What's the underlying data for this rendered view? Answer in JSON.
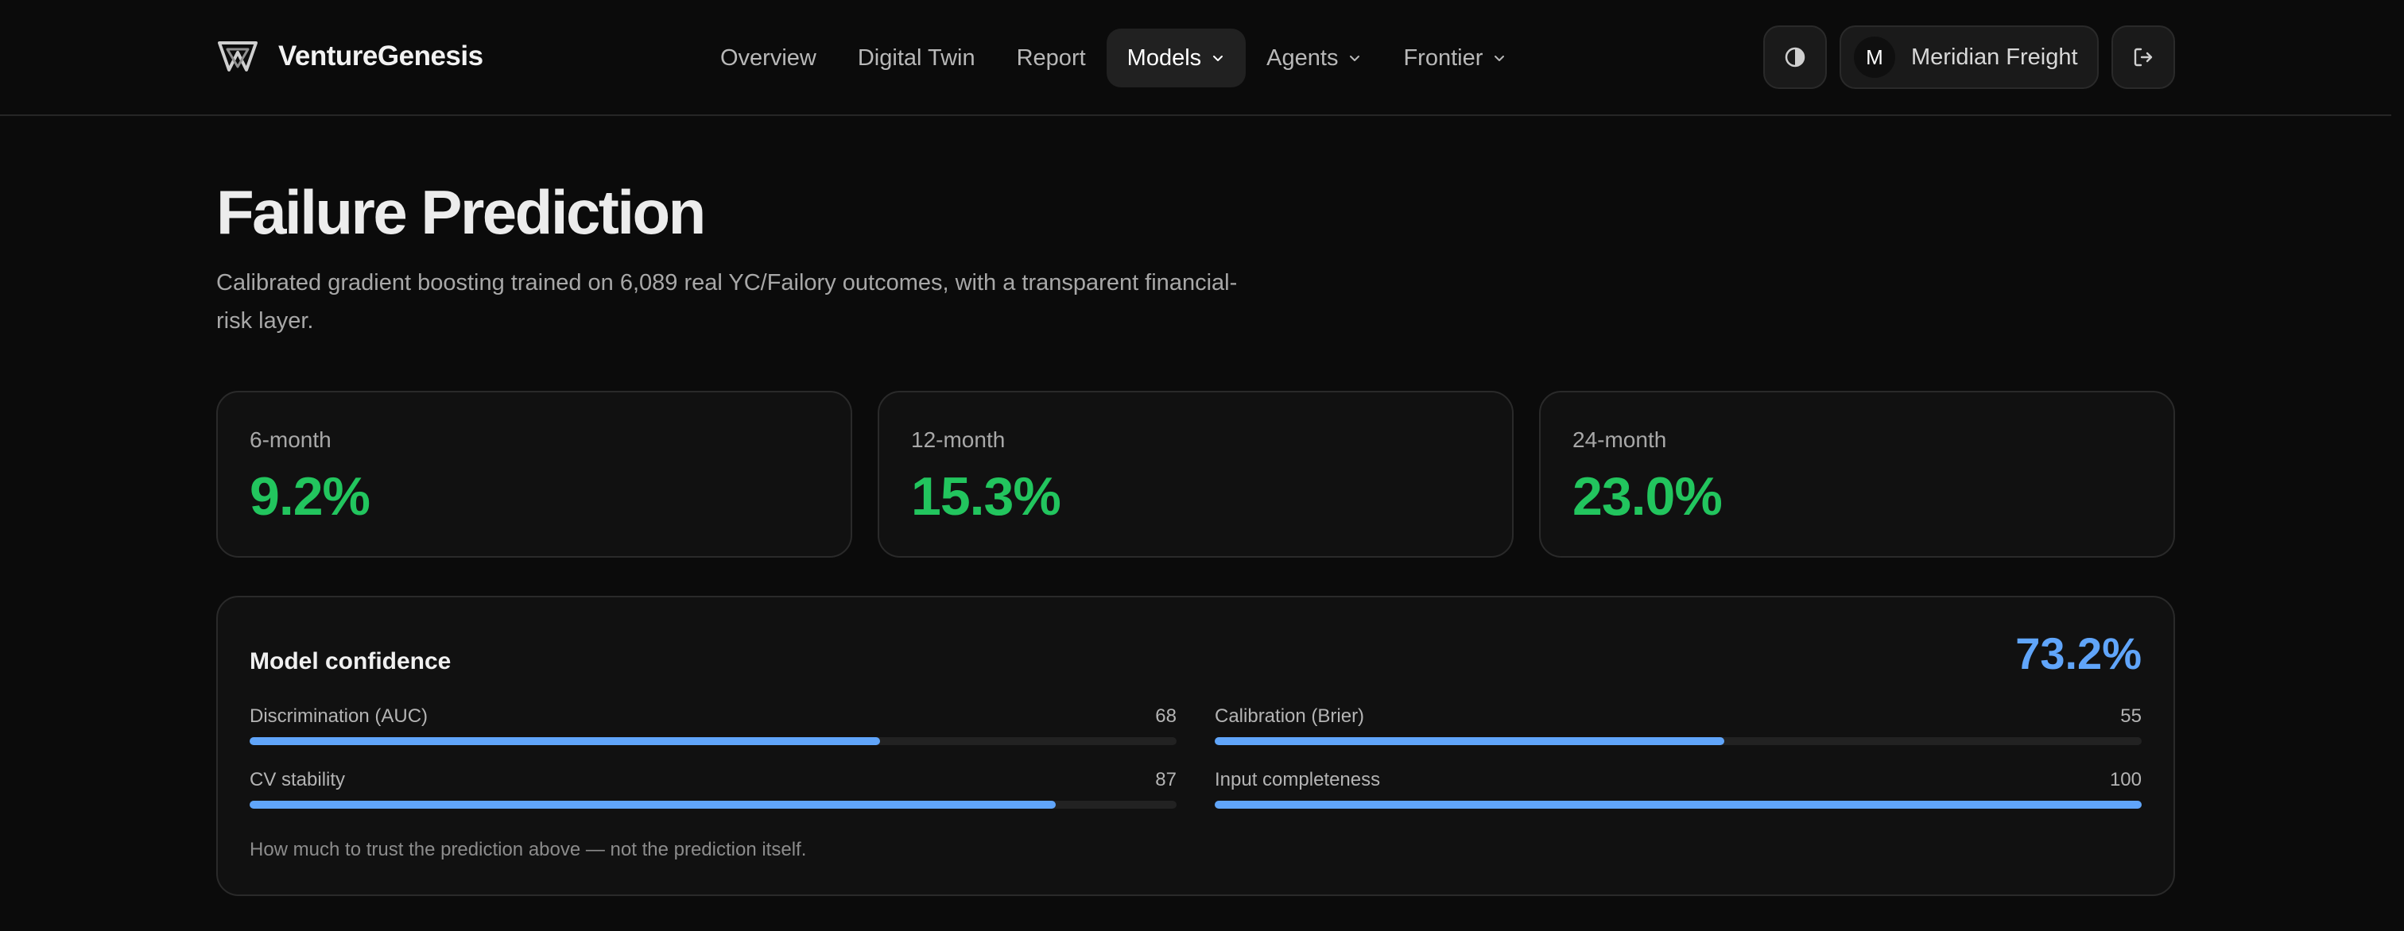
{
  "brand": {
    "name": "VentureGenesis",
    "logo_icon": "venture-logo-icon"
  },
  "nav": {
    "items": [
      {
        "label": "Overview",
        "active": false,
        "dropdown": false
      },
      {
        "label": "Digital Twin",
        "active": false,
        "dropdown": false
      },
      {
        "label": "Report",
        "active": false,
        "dropdown": false
      },
      {
        "label": "Models",
        "active": true,
        "dropdown": true
      },
      {
        "label": "Agents",
        "active": false,
        "dropdown": true
      },
      {
        "label": "Frontier",
        "active": false,
        "dropdown": true
      }
    ]
  },
  "account": {
    "initial": "M",
    "name": "Meridian Freight"
  },
  "icons": {
    "theme": "contrast-icon",
    "logout": "logout-icon",
    "dropdown": "chevron-down-icon"
  },
  "page": {
    "title": "Failure Prediction",
    "subtitle": "Calibrated gradient boosting trained on 6,089 real YC/Failory outcomes, with a transparent financial-risk layer."
  },
  "horizons": [
    {
      "label": "6-month",
      "value": "9.2%"
    },
    {
      "label": "12-month",
      "value": "15.3%"
    },
    {
      "label": "24-month",
      "value": "23.0%"
    }
  ],
  "confidence": {
    "title": "Model confidence",
    "value": "73.2%",
    "metrics": [
      {
        "label": "Discrimination (AUC)",
        "value": "68",
        "fraction": 0.68
      },
      {
        "label": "Calibration (Brier)",
        "value": "55",
        "fraction": 0.55
      },
      {
        "label": "CV stability",
        "value": "87",
        "fraction": 0.87
      },
      {
        "label": "Input completeness",
        "value": "100",
        "fraction": 1.0
      }
    ],
    "note": "How much to trust the prediction above — not the prediction itself."
  },
  "colors": {
    "background": "#0b0b0b",
    "accent_green": "#22c55e",
    "accent_blue": "#60a5fa"
  }
}
